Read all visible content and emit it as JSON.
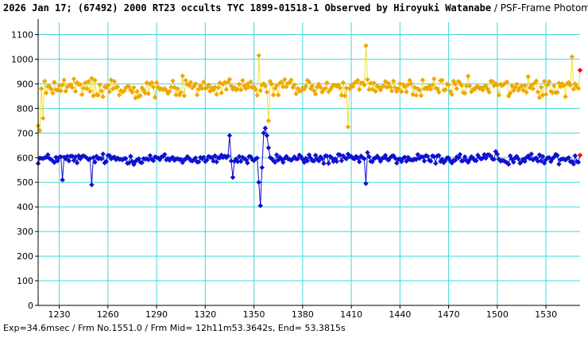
{
  "header": {
    "title_bold": "2026 Jan 17; (67492) 2000 RT23 occults TYC 1899-01518-1 Observed by Hiroyuki Watanabe",
    "title_normal": " / PSF-Frame Photometry /"
  },
  "footer": {
    "text": "Exp=34.6msec / Frm No.1551.0 / Frm Mid= 12h11m53.3642s,  End= 53.3815s"
  },
  "colors": {
    "grid": "#40d8d8",
    "target": "#1010d0",
    "comparison": "#f0a800",
    "comparison_line": "#f0e030",
    "current": "#ff0000"
  },
  "chart_data": {
    "type": "line",
    "title": "2026 Jan 17; (67492) 2000 RT23 occults TYC 1899-01518-1 Observed by Hiroyuki Watanabe / PSF-Frame Photometry /",
    "xlabel": "",
    "ylabel": "",
    "xlim": [
      1217,
      1551
    ],
    "ylim": [
      0,
      1150
    ],
    "grid": true,
    "legend": "none",
    "x_ticks": [
      "1230",
      "1260",
      "1290",
      "1320",
      "1350",
      "1380",
      "1410",
      "1440",
      "1470",
      "1500",
      "1530"
    ],
    "y_ticks": [
      "0",
      "100",
      "200",
      "300",
      "400",
      "500",
      "600",
      "700",
      "800",
      "900",
      "1000",
      "1100"
    ],
    "x_range": [
      1217,
      1551
    ],
    "series": [
      {
        "role": "target",
        "color": "#1010d0",
        "baseline": 595,
        "noise": 30,
        "features": [
          {
            "x": 1335,
            "y": 690
          },
          {
            "x": 1337,
            "y": 520
          },
          {
            "x": 1353,
            "y": 500
          },
          {
            "x": 1354,
            "y": 405
          },
          {
            "x": 1355,
            "y": 560
          },
          {
            "x": 1356,
            "y": 700
          },
          {
            "x": 1357,
            "y": 720
          },
          {
            "x": 1358,
            "y": 690
          },
          {
            "x": 1359,
            "y": 640
          },
          {
            "x": 1419,
            "y": 495
          },
          {
            "x": 1499,
            "y": 625
          },
          {
            "x": 1232,
            "y": 510
          },
          {
            "x": 1250,
            "y": 490
          }
        ],
        "last": {
          "x": 1551,
          "y": 610
        }
      },
      {
        "role": "comparison",
        "color": "#f0a800",
        "baseline": 885,
        "noise": 55,
        "features": [
          {
            "x": 1217,
            "y": 730
          },
          {
            "x": 1218,
            "y": 710
          },
          {
            "x": 1220,
            "y": 760
          },
          {
            "x": 1353,
            "y": 1015
          },
          {
            "x": 1359,
            "y": 750
          },
          {
            "x": 1408,
            "y": 725
          },
          {
            "x": 1419,
            "y": 1055
          },
          {
            "x": 1546,
            "y": 1010
          }
        ],
        "last": {
          "x": 1551,
          "y": 955
        }
      }
    ]
  }
}
